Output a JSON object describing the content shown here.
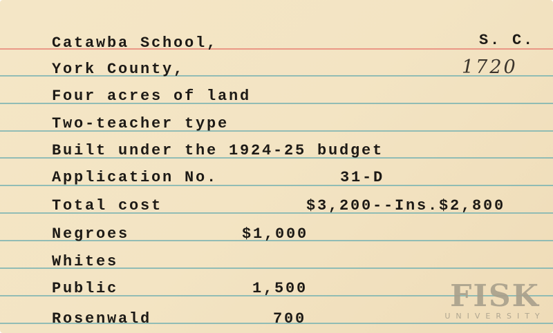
{
  "card": {
    "school": "Catawba School,",
    "state": "S. C.",
    "county": "York County,",
    "number": "1720",
    "land": "Four acres of land",
    "type": "Two-teacher type",
    "budget": "Built under the 1924-25 budget",
    "application_label": "Application No.",
    "application_value": "31-D",
    "total_label": "Total cost",
    "total_value": "$3,200--Ins.$2,800",
    "negroes_label": "Negroes",
    "negroes_value": "$1,000",
    "whites_label": "Whites",
    "public_label": "Public",
    "public_value": "1,500",
    "rosenwald_label": "Rosenwald",
    "rosenwald_value": "700"
  },
  "watermark": {
    "name": "FISK",
    "sub": "UNIVERSITY"
  }
}
